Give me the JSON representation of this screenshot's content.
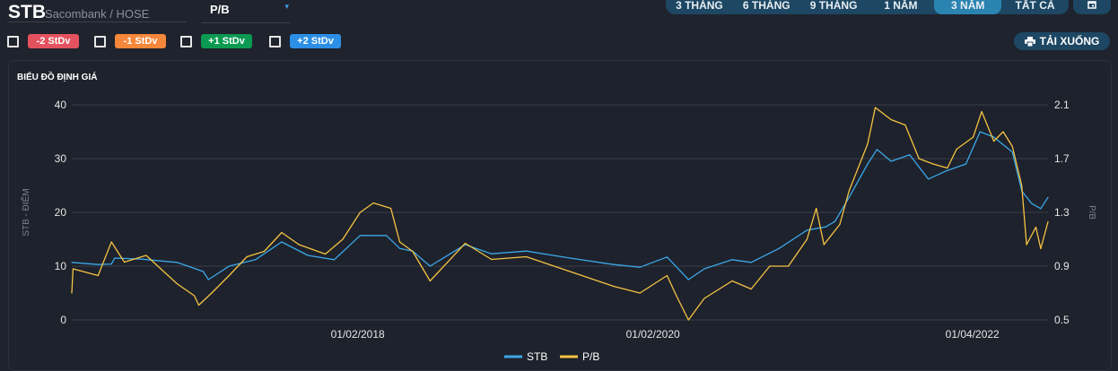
{
  "header": {
    "ticker": "STB",
    "exchange": "Sacombank / HOSE",
    "metric": "P/B",
    "metric_caret": "▾"
  },
  "ranges": [
    {
      "label": "3 THÁNG"
    },
    {
      "label": "6 THÁNG"
    },
    {
      "label": "9 THÁNG"
    },
    {
      "label": "1 NĂM"
    },
    {
      "label": "3 NĂM",
      "active": true
    },
    {
      "label": "TẤT CẢ"
    }
  ],
  "calendar_icon": "calendar-icon",
  "stdv": [
    {
      "label": "-2 StDv",
      "color": "#e5525f",
      "checked": false
    },
    {
      "label": "-1 StDv",
      "color": "#f7873a",
      "checked": false
    },
    {
      "label": "+1 StDv",
      "color": "#0b9a51",
      "checked": false
    },
    {
      "label": "+2 StDv",
      "color": "#2b8fe6",
      "checked": false
    }
  ],
  "download": {
    "label": "TẢI XUỐNG",
    "icon": "printer-icon"
  },
  "card_title": "BIỂU ĐỒ ĐỊNH GIÁ",
  "chart_data": {
    "type": "line",
    "xlim": [
      "2016-02-25",
      "2022-10-05"
    ],
    "x_ticks": [
      {
        "date": "2018-02-01",
        "label": "01/02/2018"
      },
      {
        "date": "2020-02-01",
        "label": "01/02/2020"
      },
      {
        "date": "2022-04-01",
        "label": "01/04/2022"
      }
    ],
    "y_left": {
      "label": "STB - ĐIỂM",
      "ylim": [
        0,
        40
      ],
      "ticks": [
        "0",
        "10",
        "20",
        "30",
        "40"
      ]
    },
    "y_right": {
      "label": "P/B",
      "ylim": [
        0.5,
        2.1
      ],
      "ticks": [
        "0.5",
        "0.9",
        "1.3",
        "1.7",
        "2.1"
      ]
    },
    "grid": true,
    "legend": "bottom",
    "series": [
      {
        "name": "STB",
        "axis": "left",
        "color": "#3aa8e8",
        "points": [
          [
            "2016-02-25",
            10.7
          ],
          [
            "2016-04-30",
            10.3
          ],
          [
            "2016-06-02",
            10.4
          ],
          [
            "2016-06-10",
            11.5
          ],
          [
            "2016-08-16",
            11.3
          ],
          [
            "2016-11-11",
            10.7
          ],
          [
            "2017-01-15",
            9.0
          ],
          [
            "2017-01-28",
            7.5
          ],
          [
            "2017-03-20",
            10.0
          ],
          [
            "2017-05-24",
            11.2
          ],
          [
            "2017-07-28",
            14.5
          ],
          [
            "2017-10-01",
            12.0
          ],
          [
            "2017-12-05",
            11.2
          ],
          [
            "2018-02-07",
            15.7
          ],
          [
            "2018-04-13",
            15.7
          ],
          [
            "2018-05-16",
            13.3
          ],
          [
            "2018-06-17",
            12.8
          ],
          [
            "2018-07-30",
            10.0
          ],
          [
            "2018-10-25",
            14.0
          ],
          [
            "2018-12-29",
            12.3
          ],
          [
            "2019-03-25",
            12.8
          ],
          [
            "2019-07-11",
            11.5
          ],
          [
            "2019-10-27",
            10.3
          ],
          [
            "2019-12-31",
            9.8
          ],
          [
            "2020-03-07",
            11.7
          ],
          [
            "2020-04-29",
            7.5
          ],
          [
            "2020-06-07",
            9.5
          ],
          [
            "2020-08-15",
            11.2
          ],
          [
            "2020-10-01",
            10.7
          ],
          [
            "2020-12-09",
            13.3
          ],
          [
            "2021-02-16",
            16.7
          ],
          [
            "2021-04-03",
            17.3
          ],
          [
            "2021-04-26",
            18.3
          ],
          [
            "2021-05-31",
            22.8
          ],
          [
            "2021-07-16",
            29.0
          ],
          [
            "2021-08-08",
            31.7
          ],
          [
            "2021-09-12",
            29.5
          ],
          [
            "2021-10-28",
            30.7
          ],
          [
            "2021-12-13",
            26.2
          ],
          [
            "2022-01-29",
            27.8
          ],
          [
            "2022-03-16",
            29.0
          ],
          [
            "2022-04-20",
            35.0
          ],
          [
            "2022-05-24",
            34.0
          ],
          [
            "2022-07-09",
            31.2
          ],
          [
            "2022-08-01",
            24.0
          ],
          [
            "2022-08-25",
            21.7
          ],
          [
            "2022-09-17",
            20.7
          ],
          [
            "2022-10-05",
            22.8
          ]
        ]
      },
      {
        "name": "P/B",
        "axis": "right",
        "color": "#f5c342",
        "points": [
          [
            "2016-02-25",
            0.7
          ],
          [
            "2016-02-28",
            0.88
          ],
          [
            "2016-04-30",
            0.83
          ],
          [
            "2016-06-02",
            1.08
          ],
          [
            "2016-07-04",
            0.93
          ],
          [
            "2016-08-27",
            0.98
          ],
          [
            "2016-11-11",
            0.77
          ],
          [
            "2016-12-24",
            0.68
          ],
          [
            "2017-01-04",
            0.61
          ],
          [
            "2017-02-05",
            0.7
          ],
          [
            "2017-03-20",
            0.83
          ],
          [
            "2017-05-03",
            0.97
          ],
          [
            "2017-06-15",
            1.01
          ],
          [
            "2017-07-28",
            1.15
          ],
          [
            "2017-09-09",
            1.06
          ],
          [
            "2017-11-13",
            0.99
          ],
          [
            "2017-12-26",
            1.1
          ],
          [
            "2018-02-07",
            1.3
          ],
          [
            "2018-03-12",
            1.37
          ],
          [
            "2018-04-24",
            1.33
          ],
          [
            "2018-05-16",
            1.08
          ],
          [
            "2018-06-17",
            1.01
          ],
          [
            "2018-07-30",
            0.79
          ],
          [
            "2018-10-25",
            1.07
          ],
          [
            "2018-12-29",
            0.95
          ],
          [
            "2019-03-25",
            0.97
          ],
          [
            "2019-07-11",
            0.86
          ],
          [
            "2019-10-27",
            0.75
          ],
          [
            "2019-12-31",
            0.7
          ],
          [
            "2020-03-07",
            0.83
          ],
          [
            "2020-03-30",
            0.68
          ],
          [
            "2020-04-29",
            0.5
          ],
          [
            "2020-06-07",
            0.66
          ],
          [
            "2020-08-15",
            0.79
          ],
          [
            "2020-10-01",
            0.73
          ],
          [
            "2020-11-16",
            0.9
          ],
          [
            "2021-01-01",
            0.9
          ],
          [
            "2021-02-16",
            1.1
          ],
          [
            "2021-03-11",
            1.33
          ],
          [
            "2021-03-30",
            1.06
          ],
          [
            "2021-05-08",
            1.21
          ],
          [
            "2021-05-31",
            1.46
          ],
          [
            "2021-07-16",
            1.81
          ],
          [
            "2021-08-04",
            2.08
          ],
          [
            "2021-09-12",
            1.99
          ],
          [
            "2021-10-17",
            1.95
          ],
          [
            "2021-11-20",
            1.7
          ],
          [
            "2021-12-25",
            1.66
          ],
          [
            "2022-01-29",
            1.63
          ],
          [
            "2022-02-21",
            1.77
          ],
          [
            "2022-04-03",
            1.86
          ],
          [
            "2022-04-24",
            2.05
          ],
          [
            "2022-05-24",
            1.83
          ],
          [
            "2022-06-16",
            1.9
          ],
          [
            "2022-07-09",
            1.79
          ],
          [
            "2022-08-01",
            1.5
          ],
          [
            "2022-08-13",
            1.06
          ],
          [
            "2022-09-05",
            1.19
          ],
          [
            "2022-09-17",
            1.03
          ],
          [
            "2022-10-05",
            1.23
          ]
        ]
      }
    ]
  }
}
